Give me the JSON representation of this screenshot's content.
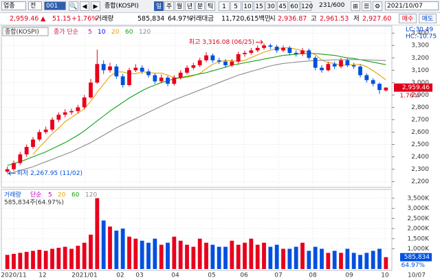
{
  "toolbar": {
    "market": "업종",
    "mode": "전",
    "code": "001",
    "name": "종합(KOSPI)",
    "periods": [
      "일",
      "주",
      "월",
      "년",
      "분",
      "틱"
    ],
    "intervals": [
      "1",
      "5",
      "10",
      "15",
      "30",
      "45",
      "60",
      "120"
    ],
    "count": "231/600",
    "date": "2021/10/07"
  },
  "quote": {
    "price": "2,959.46",
    "arrow": "▲",
    "change": "51.15",
    "change_pct": "+1.76%",
    "volume_label": "거래량",
    "volume": "585,834",
    "volume_ratio": "64.97%",
    "amount_label": "거래대금",
    "amount": "11,720,615백만",
    "open_label": "시",
    "open": "2,936.87",
    "high_label": "고",
    "high": "2,961.53",
    "low_label": "저",
    "low": "2,927.60",
    "buy": "매수",
    "sell": "매도"
  },
  "chart_data": [
    {
      "type": "candlestick",
      "title": "종합(KOSPI)",
      "legend_prefix": "종가 단순",
      "up_color": "#e8001c",
      "down_color": "#0050e0",
      "open": [
        2280,
        2300,
        2350,
        2420,
        2480,
        2540,
        2600,
        2620,
        2700,
        2740,
        2760,
        2770,
        2800,
        2880,
        3000,
        3150,
        3100,
        3130,
        3050,
        2980,
        3100,
        3120,
        3090,
        3060,
        3010,
        3040,
        2990,
        3040,
        3080,
        3120,
        3140,
        3180,
        3220,
        3180,
        3170,
        3140,
        3170,
        3230,
        3240,
        3260,
        3280,
        3300,
        3290,
        3260,
        3280,
        3240,
        3230,
        3260,
        3200,
        3120,
        3100,
        3150,
        3130,
        3180,
        3140,
        3130,
        3060,
        3020,
        2990,
        2936.87
      ],
      "high": [
        2320,
        2370,
        2440,
        2500,
        2560,
        2620,
        2645,
        2720,
        2760,
        2785,
        2790,
        2820,
        2900,
        3030,
        3266,
        3180,
        3160,
        3150,
        3070,
        3120,
        3150,
        3140,
        3110,
        3075,
        3065,
        3055,
        3060,
        3100,
        3140,
        3160,
        3200,
        3245,
        3235,
        3200,
        3190,
        3190,
        3250,
        3260,
        3280,
        3300,
        3316.08,
        3315,
        3305,
        3300,
        3295,
        3260,
        3280,
        3275,
        3215,
        3140,
        3170,
        3170,
        3200,
        3195,
        3160,
        3145,
        3075,
        3035,
        3000,
        2961.53
      ],
      "low": [
        2267.95,
        2285,
        2335,
        2400,
        2465,
        2525,
        2585,
        2605,
        2680,
        2720,
        2740,
        2750,
        2785,
        2870,
        2990,
        3070,
        3080,
        3030,
        2960,
        2970,
        3085,
        3070,
        3040,
        2990,
        2995,
        2970,
        2975,
        3025,
        3065,
        3105,
        3125,
        3165,
        3160,
        3150,
        3120,
        3125,
        3155,
        3210,
        3225,
        3245,
        3265,
        3270,
        3240,
        3245,
        3220,
        3210,
        3215,
        3185,
        3100,
        3080,
        3090,
        3110,
        3115,
        3125,
        3110,
        3040,
        3000,
        2970,
        2910,
        2927.6
      ],
      "close": [
        2300,
        2350,
        2420,
        2480,
        2540,
        2600,
        2620,
        2700,
        2740,
        2760,
        2770,
        2800,
        2880,
        3000,
        3150,
        3100,
        3130,
        3050,
        2980,
        3100,
        3120,
        3090,
        3060,
        3010,
        3040,
        2990,
        3040,
        3080,
        3120,
        3140,
        3180,
        3220,
        3180,
        3170,
        3140,
        3170,
        3230,
        3240,
        3260,
        3280,
        3300,
        3290,
        3260,
        3280,
        3240,
        3230,
        3260,
        3200,
        3120,
        3100,
        3150,
        3130,
        3180,
        3140,
        3130,
        3060,
        3020,
        2990,
        2940,
        2959.46
      ],
      "series": [
        {
          "name": "5",
          "color": "#c000c0"
        },
        {
          "name": "10",
          "color": "#0000ff"
        },
        {
          "name": "20",
          "color": "#e8a000",
          "values": [
            null,
            null,
            null,
            null,
            2418,
            2478,
            2532,
            2588,
            2632,
            2684,
            2718,
            2754,
            2790,
            2850,
            2922,
            2986,
            3052,
            3086,
            3086,
            3072,
            3072,
            3088,
            3080,
            3076,
            3076,
            3060,
            3040,
            3036,
            3044,
            3056,
            3074,
            3112,
            3148,
            3168,
            3178,
            3176,
            3172,
            3178,
            3202,
            3224,
            3246,
            3262,
            3274,
            3282,
            3282,
            3270,
            3258,
            3246,
            3226,
            3182,
            3162,
            3154,
            3140,
            3142,
            3146,
            3148,
            3128,
            3096,
            3060,
            3022
          ]
        },
        {
          "name": "60",
          "color": "#10a010",
          "values": [
            2330,
            2345,
            2360,
            2380,
            2400,
            2420,
            2440,
            2465,
            2490,
            2515,
            2545,
            2575,
            2610,
            2650,
            2690,
            2730,
            2770,
            2805,
            2840,
            2875,
            2905,
            2935,
            2960,
            2980,
            3000,
            3015,
            3030,
            3040,
            3050,
            3060,
            3070,
            3080,
            3095,
            3110,
            3125,
            3140,
            3150,
            3160,
            3170,
            3180,
            3190,
            3200,
            3210,
            3220,
            3225,
            3230,
            3235,
            3235,
            3235,
            3230,
            3225,
            3220,
            3210,
            3200,
            3195,
            3185,
            3175,
            3165,
            3155,
            3145
          ]
        },
        {
          "name": "120",
          "color": "#8a8a8a",
          "values": [
            2260,
            2275,
            2290,
            2305,
            2320,
            2340,
            2360,
            2380,
            2400,
            2420,
            2440,
            2465,
            2490,
            2515,
            2545,
            2575,
            2605,
            2635,
            2660,
            2685,
            2710,
            2735,
            2760,
            2785,
            2810,
            2835,
            2860,
            2880,
            2900,
            2920,
            2940,
            2960,
            2980,
            3000,
            3020,
            3040,
            3060,
            3075,
            3090,
            3105,
            3120,
            3135,
            3145,
            3155,
            3160,
            3165,
            3170,
            3175,
            3178,
            3180,
            3182,
            3184,
            3185,
            3186,
            3186,
            3185,
            3184,
            3182,
            3180,
            3178
          ]
        }
      ],
      "ylim": [
        2170,
        3440
      ],
      "yticks": [
        {
          "value": 2200,
          "label": "2,200"
        },
        {
          "value": 2300,
          "label": "2,300"
        },
        {
          "value": 2400,
          "label": "2,400"
        },
        {
          "value": 2500,
          "label": "2,500"
        },
        {
          "value": 2600,
          "label": "2,600"
        },
        {
          "value": 2700,
          "label": "2,700"
        },
        {
          "value": 2800,
          "label": "2,800"
        },
        {
          "value": 2900,
          "label": "2,900"
        },
        {
          "value": 3000,
          "label": "3,000"
        },
        {
          "value": 3100,
          "label": "3,100"
        },
        {
          "value": 3200,
          "label": "3,200"
        },
        {
          "value": 3300,
          "label": "3,300"
        },
        {
          "value": 3400,
          "label": "3,400"
        }
      ],
      "grid": true,
      "max_label": "최고 3,316.08 (06/25)",
      "min_label": "최저 2,267.95 (11/02)",
      "lc_label": "LC:30.49",
      "hc_label": "HC:-10.75",
      "last_label": "2,959.46",
      "last_pct": "1.76%"
    },
    {
      "type": "bar",
      "title": "거래량",
      "legend_prefix": "단순",
      "info": "585,834주(64.97%)",
      "series": [
        {
          "name": "5",
          "color": "#c000c0"
        },
        {
          "name": "20",
          "color": "#e8a000"
        },
        {
          "name": "60",
          "color": "#10a010"
        },
        {
          "name": "120",
          "color": "#8a8a8a"
        }
      ],
      "values": [
        700,
        750,
        800,
        850,
        900,
        950,
        900,
        1000,
        1050,
        1100,
        1000,
        1150,
        1300,
        1700,
        3500,
        2400,
        2100,
        1900,
        2000,
        1600,
        1500,
        1400,
        1300,
        1500,
        1200,
        1300,
        1600,
        1400,
        1200,
        1100,
        1500,
        1300,
        1200,
        1100,
        1100,
        1400,
        1200,
        1300,
        1500,
        1200,
        1300,
        1100,
        1200,
        1000,
        1000,
        1100,
        1300,
        900,
        1100,
        1000,
        800,
        900,
        800,
        1000,
        800,
        700,
        800,
        900,
        1000,
        585.834
      ],
      "ylim": [
        0,
        3800
      ],
      "yticks": [
        {
          "value": 1000,
          "label": "1,000K"
        },
        {
          "value": 1500,
          "label": "1,500K"
        },
        {
          "value": 2000,
          "label": "2,000K"
        },
        {
          "value": 2500,
          "label": "2,500K"
        },
        {
          "value": 3000,
          "label": "3,000K"
        },
        {
          "value": 3500,
          "label": "3,500K"
        }
      ],
      "grid": true,
      "last_label": "585,834",
      "last_pct": "64.97%",
      "x_labels": [
        "2020/11",
        "12",
        "2021/01",
        "02",
        "03",
        "04",
        "05",
        "06",
        "07",
        "08",
        "09",
        "10",
        "10/07"
      ]
    }
  ]
}
